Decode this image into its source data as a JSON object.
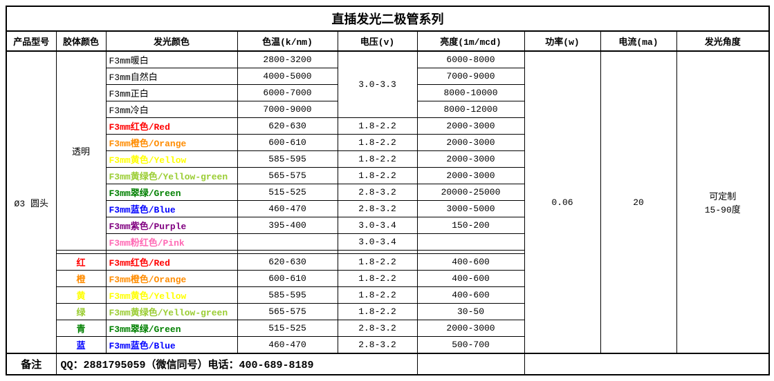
{
  "title": "直插发光二极管系列",
  "columns": [
    "产品型号",
    "胶体颜色",
    "发光颜色",
    "色温(k/nm)",
    "电压(v)",
    "亮度(1m/mcd)",
    "功率(w)",
    "电流(ma)",
    "发光角度"
  ],
  "model": "Ø3 圆头",
  "lens_group1": "透明",
  "voltage_white_group": "3.0-3.3",
  "power": "0.06",
  "current": "20",
  "angle": "可定制\n15-90度",
  "colors": {
    "red": "#ff0000",
    "orange": "#ff8c00",
    "yellow": "#ffff00",
    "ygreen": "#9acd32",
    "green": "#008000",
    "blue": "#0000ff",
    "purple": "#800080",
    "pink": "#ff69b4"
  },
  "rows_g1": [
    {
      "name": "F3mm暖白",
      "color": null,
      "temp": "2800-3200",
      "volt": null,
      "bright": "6000-8000",
      "bold": false
    },
    {
      "name": "F3mm自然白",
      "color": null,
      "temp": "4000-5000",
      "volt": null,
      "bright": "7000-9000",
      "bold": false
    },
    {
      "name": "F3mm正白",
      "color": null,
      "temp": "6000-7000",
      "volt": null,
      "bright": "8000-10000",
      "bold": false
    },
    {
      "name": "F3mm冷白",
      "color": null,
      "temp": "7000-9000",
      "volt": null,
      "bright": "8000-12000",
      "bold": false
    },
    {
      "name": "F3mm红色/Red",
      "color": "red",
      "temp": "620-630",
      "volt": "1.8-2.2",
      "bright": "2000-3000",
      "bold": true
    },
    {
      "name": "F3mm橙色/Orange",
      "color": "orange",
      "temp": "600-610",
      "volt": "1.8-2.2",
      "bright": "2000-3000",
      "bold": true
    },
    {
      "name": "F3mm黄色/Yellow",
      "color": "yellow",
      "temp": "585-595",
      "volt": "1.8-2.2",
      "bright": "2000-3000",
      "bold": true
    },
    {
      "name": "F3mm黄绿色/Yellow-green",
      "color": "ygreen",
      "temp": "565-575",
      "volt": "1.8-2.2",
      "bright": "2000-3000",
      "bold": true
    },
    {
      "name": "F3mm翠绿/Green",
      "color": "green",
      "temp": "515-525",
      "volt": "2.8-3.2",
      "bright": "20000-25000",
      "bold": true
    },
    {
      "name": "F3mm蓝色/Blue",
      "color": "blue",
      "temp": "460-470",
      "volt": "2.8-3.2",
      "bright": "3000-5000",
      "bold": true
    },
    {
      "name": "F3mm紫色/Purple",
      "color": "purple",
      "temp": "395-400",
      "volt": "3.0-3.4",
      "bright": "150-200",
      "bold": true
    },
    {
      "name": "F3mm粉红色/Pink",
      "color": "pink",
      "temp": "",
      "volt": "3.0-3.4",
      "bright": "",
      "bold": true
    }
  ],
  "rows_g2": [
    {
      "lens": "红",
      "lens_color": "red",
      "name": "F3mm红色/Red",
      "color": "red",
      "temp": "620-630",
      "volt": "1.8-2.2",
      "bright": "400-600"
    },
    {
      "lens": "橙",
      "lens_color": "orange",
      "name": "F3mm橙色/Orange",
      "color": "orange",
      "temp": "600-610",
      "volt": "1.8-2.2",
      "bright": "400-600"
    },
    {
      "lens": "黄",
      "lens_color": "yellow",
      "name": "F3mm黄色/Yellow",
      "color": "yellow",
      "temp": "585-595",
      "volt": "1.8-2.2",
      "bright": "400-600"
    },
    {
      "lens": "绿",
      "lens_color": "ygreen",
      "name": "F3mm黄绿色/Yellow-green",
      "color": "ygreen",
      "temp": "565-575",
      "volt": "1.8-2.2",
      "bright": "30-50"
    },
    {
      "lens": "青",
      "lens_color": "green",
      "name": "F3mm翠绿/Green",
      "color": "green",
      "temp": "515-525",
      "volt": "2.8-3.2",
      "bright": "2000-3000"
    },
    {
      "lens": "蓝",
      "lens_color": "blue",
      "name": "F3mm蓝色/Blue",
      "color": "blue",
      "temp": "460-470",
      "volt": "2.8-3.2",
      "bright": "500-700"
    }
  ],
  "remark_label": "备注",
  "remark_text": "QQ：2881795059（微信同号）电话：400-689-8189"
}
